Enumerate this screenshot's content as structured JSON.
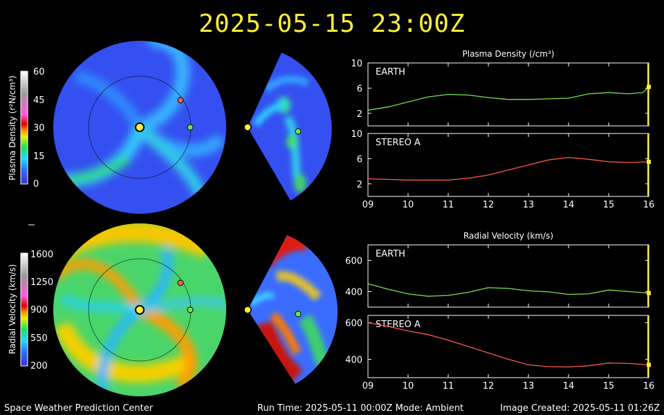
{
  "header": {
    "timestamp": "2025-05-15 23:00Z"
  },
  "footer": {
    "left": "Space Weather Prediction Center",
    "center": "Run Time: 2025-05-11 00:00Z  Mode: Ambient",
    "right": "Image Created: 2025-05-11 01:26Z"
  },
  "colorbars": {
    "density": {
      "label_html": "Plasma Density (r²N/cm³)",
      "ticks": [
        "60",
        "45",
        "30",
        "15",
        "0"
      ]
    },
    "velocity": {
      "label_html": "Radial Velocity (km/s)",
      "ticks": [
        "1600",
        "1250",
        "900",
        "550",
        "200"
      ]
    }
  },
  "colors": {
    "earth": "#7be34a",
    "stereo_a": "#ff5a4a",
    "accent": "#ffef3a"
  },
  "chart_data": [
    {
      "type": "line",
      "title": "Plasma Density (/cm³)",
      "panel_label": "EARTH",
      "xlim": [
        9,
        16
      ],
      "ylim": [
        0,
        10
      ],
      "yticks": [
        2,
        6,
        10
      ],
      "x": [
        9.0,
        9.5,
        10.0,
        10.5,
        11.0,
        11.5,
        12.0,
        12.5,
        13.0,
        13.5,
        14.0,
        14.5,
        15.0,
        15.5,
        15.85,
        16.0
      ],
      "series": [
        {
          "name": "EARTH",
          "values": [
            2.5,
            3.0,
            3.8,
            4.6,
            5.0,
            4.9,
            4.5,
            4.2,
            4.2,
            4.3,
            4.4,
            5.1,
            5.3,
            5.1,
            5.3,
            6.2
          ]
        }
      ]
    },
    {
      "type": "line",
      "panel_label": "STEREO A",
      "xlabel_ticks": [
        "09",
        "10",
        "11",
        "12",
        "13",
        "14",
        "15",
        "16"
      ],
      "xlim": [
        9,
        16
      ],
      "ylim": [
        0,
        10
      ],
      "yticks": [
        2,
        6,
        10
      ],
      "x": [
        9.0,
        9.5,
        10.0,
        10.5,
        11.0,
        11.5,
        12.0,
        12.5,
        13.0,
        13.5,
        14.0,
        14.5,
        15.0,
        15.5,
        16.0
      ],
      "series": [
        {
          "name": "STEREO A",
          "values": [
            2.8,
            2.7,
            2.6,
            2.6,
            2.6,
            2.9,
            3.4,
            4.2,
            5.0,
            5.8,
            6.2,
            5.9,
            5.5,
            5.4,
            5.5
          ]
        }
      ]
    },
    {
      "type": "line",
      "title": "Radial Velocity (km/s)",
      "panel_label": "EARTH",
      "xlim": [
        9,
        16
      ],
      "ylim": [
        300,
        700
      ],
      "yticks": [
        400,
        600
      ],
      "x": [
        9.0,
        9.5,
        10.0,
        10.5,
        11.0,
        11.5,
        12.0,
        12.5,
        13.0,
        13.5,
        14.0,
        14.5,
        15.0,
        15.5,
        16.0
      ],
      "series": [
        {
          "name": "EARTH",
          "values": [
            450,
            415,
            385,
            370,
            375,
            395,
            425,
            420,
            405,
            398,
            382,
            385,
            410,
            400,
            390
          ]
        }
      ]
    },
    {
      "type": "line",
      "panel_label": "STEREO A",
      "xlabel_ticks": [
        "09",
        "10",
        "11",
        "12",
        "13",
        "14",
        "15",
        "16"
      ],
      "xlim": [
        9,
        16
      ],
      "ylim": [
        300,
        640
      ],
      "yticks": [
        400,
        600
      ],
      "x": [
        9.0,
        9.5,
        10.0,
        10.5,
        11.0,
        11.5,
        12.0,
        12.5,
        13.0,
        13.5,
        14.0,
        14.5,
        15.0,
        15.5,
        16.0
      ],
      "series": [
        {
          "name": "STEREO A",
          "values": [
            600,
            580,
            555,
            535,
            505,
            470,
            435,
            400,
            370,
            360,
            358,
            365,
            380,
            378,
            370
          ]
        }
      ]
    }
  ]
}
